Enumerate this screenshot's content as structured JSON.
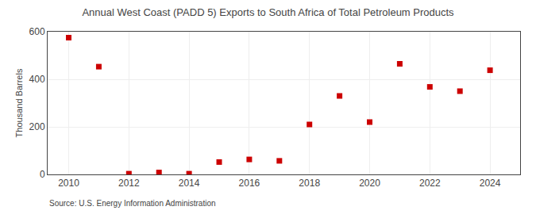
{
  "chart_data": {
    "type": "scatter",
    "title": "Annual West Coast (PADD 5) Exports to South Africa of Total Petroleum Products",
    "y_label": "Thousand Barrels",
    "annotations": [
      "Source: U.S. Energy Information Administration"
    ],
    "x": [
      2010,
      2011,
      2012,
      2013,
      2014,
      2015,
      2016,
      2017,
      2018,
      2019,
      2020,
      2021,
      2022,
      2023,
      2024
    ],
    "values": [
      575,
      453,
      3,
      8,
      3,
      52,
      63,
      57,
      210,
      330,
      220,
      465,
      368,
      350,
      438
    ],
    "color": "#cc0000",
    "marker": "square",
    "xlim": [
      2009.3,
      2025.0
    ],
    "xticks": [
      2010,
      2012,
      2014,
      2016,
      2018,
      2020,
      2022,
      2024
    ],
    "ylim": [
      0,
      600
    ],
    "yticks": [
      0,
      200,
      400,
      600
    ],
    "grid": true
  }
}
